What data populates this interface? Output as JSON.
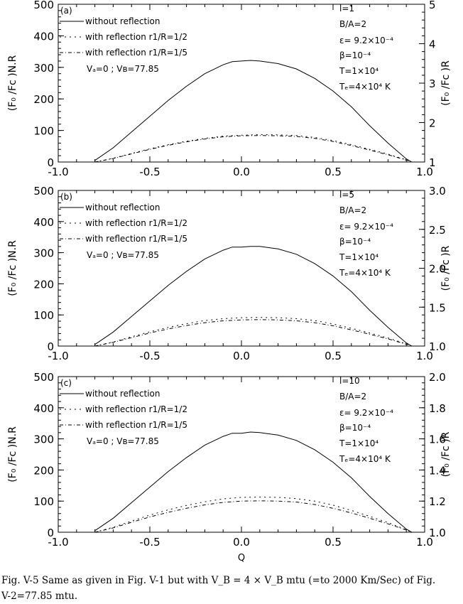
{
  "chart_data": [
    {
      "type": "line",
      "panel_label": "(a)",
      "x_range": [
        -1.0,
        1.0
      ],
      "ylim_left": [
        0,
        500
      ],
      "ylim_right": [
        1,
        5
      ],
      "x_ticks": [
        "-1.0",
        "-0.5",
        "0.0",
        "0.5",
        "1.0"
      ],
      "y_ticks_left": [
        "0",
        "100",
        "200",
        "300",
        "400",
        "500"
      ],
      "y_ticks_right": [
        "1",
        "2",
        "3",
        "4",
        "5"
      ],
      "ylabel_left": "(F₀ /Fᴄ )N.R",
      "ylabel_right": "(F₀ /Fᴄ )R",
      "xlabel": "",
      "legend": [
        "without reflection",
        "with reflection r1/R=1/2",
        "with reflection r1/R=1/5"
      ],
      "velocity_note": "Vₐ=0 ; Vʙ=77.85",
      "params": [
        "l=1",
        "B/A=2",
        "ε= 9.2×10⁻⁴",
        "β=10⁻⁴",
        "T=1×10⁴",
        "Tₑ=4×10⁴ K"
      ],
      "series": [
        {
          "name": "without reflection",
          "axis": "left",
          "x": [
            -0.8,
            -0.7,
            -0.6,
            -0.5,
            -0.4,
            -0.3,
            -0.2,
            -0.1,
            -0.05,
            0.0,
            0.05,
            0.1,
            0.2,
            0.3,
            0.4,
            0.5,
            0.6,
            0.7,
            0.8,
            0.9,
            0.93
          ],
          "y": [
            5,
            45,
            95,
            145,
            195,
            240,
            280,
            308,
            318,
            320,
            322,
            320,
            312,
            295,
            265,
            225,
            175,
            115,
            60,
            10,
            0
          ]
        },
        {
          "name": "with reflection r1/R=1/2",
          "axis": "left",
          "x": [
            -0.8,
            -0.7,
            -0.6,
            -0.5,
            -0.4,
            -0.3,
            -0.2,
            -0.1,
            0.0,
            0.1,
            0.2,
            0.3,
            0.4,
            0.5,
            0.6,
            0.7,
            0.8,
            0.9,
            0.93
          ],
          "y": [
            0,
            12,
            27,
            42,
            55,
            66,
            75,
            82,
            85,
            87,
            86,
            84,
            78,
            68,
            55,
            40,
            25,
            7,
            0
          ]
        },
        {
          "name": "with reflection r1/R=1/5",
          "axis": "left",
          "x": [
            -0.8,
            -0.7,
            -0.6,
            -0.5,
            -0.4,
            -0.3,
            -0.2,
            -0.1,
            0.0,
            0.1,
            0.2,
            0.3,
            0.4,
            0.5,
            0.6,
            0.7,
            0.8,
            0.9,
            0.93
          ],
          "y": [
            0,
            11,
            26,
            40,
            53,
            64,
            73,
            80,
            83,
            84,
            83,
            81,
            75,
            65,
            52,
            38,
            23,
            6,
            0
          ]
        }
      ]
    },
    {
      "type": "line",
      "panel_label": "(b)",
      "x_range": [
        -1.0,
        1.0
      ],
      "ylim_left": [
        0,
        500
      ],
      "ylim_right": [
        1.0,
        3.0
      ],
      "x_ticks": [
        "-1.0",
        "-0.5",
        "0.0",
        "0.5",
        "1.0"
      ],
      "y_ticks_left": [
        "0",
        "100",
        "200",
        "300",
        "400",
        "500"
      ],
      "y_ticks_right": [
        "1.0",
        "1.5",
        "2.0",
        "2.5",
        "3.0"
      ],
      "ylabel_left": "(F₀ /Fᴄ )N.R",
      "ylabel_right": "(F₀ /Fᴄ )R",
      "xlabel": "",
      "legend": [
        "without reflection",
        "with reflection r1/R=1/2",
        "with reflection r1/R=1/5"
      ],
      "velocity_note": "Vₐ=0 ; Vʙ=77.85",
      "params": [
        "l=5",
        "B/A=2",
        "ε= 9.2×10⁻⁴",
        "β=10⁻⁴",
        "T=1×10⁴",
        "Tₑ=4×10⁴ K"
      ],
      "series": [
        {
          "name": "without reflection",
          "axis": "left",
          "x": [
            -0.8,
            -0.7,
            -0.6,
            -0.5,
            -0.4,
            -0.3,
            -0.2,
            -0.1,
            -0.05,
            0.0,
            0.05,
            0.1,
            0.2,
            0.3,
            0.4,
            0.5,
            0.6,
            0.7,
            0.8,
            0.9,
            0.93
          ],
          "y": [
            5,
            45,
            95,
            145,
            195,
            240,
            280,
            308,
            318,
            318,
            320,
            320,
            312,
            295,
            265,
            225,
            175,
            115,
            60,
            10,
            0
          ]
        },
        {
          "name": "with reflection r1/R=1/2",
          "axis": "left",
          "x": [
            -0.8,
            -0.7,
            -0.6,
            -0.5,
            -0.4,
            -0.3,
            -0.2,
            -0.1,
            0.0,
            0.1,
            0.2,
            0.3,
            0.4,
            0.5,
            0.6,
            0.7,
            0.8,
            0.9,
            0.93
          ],
          "y": [
            0,
            13,
            30,
            46,
            60,
            72,
            82,
            88,
            91,
            92,
            91,
            88,
            82,
            71,
            57,
            42,
            26,
            7,
            0
          ]
        },
        {
          "name": "with reflection r1/R=1/5",
          "axis": "left",
          "x": [
            -0.8,
            -0.7,
            -0.6,
            -0.5,
            -0.4,
            -0.3,
            -0.2,
            -0.1,
            0.0,
            0.1,
            0.2,
            0.3,
            0.4,
            0.5,
            0.6,
            0.7,
            0.8,
            0.9,
            0.93
          ],
          "y": [
            0,
            12,
            27,
            42,
            55,
            66,
            75,
            81,
            84,
            85,
            84,
            81,
            75,
            65,
            52,
            38,
            23,
            6,
            0
          ]
        }
      ]
    },
    {
      "type": "line",
      "panel_label": "(c)",
      "x_range": [
        -1.0,
        1.0
      ],
      "ylim_left": [
        0,
        500
      ],
      "ylim_right": [
        1.0,
        2.0
      ],
      "x_ticks": [
        "-1.0",
        "-0.5",
        "0.0",
        "0.5",
        "1.0"
      ],
      "y_ticks_left": [
        "0",
        "100",
        "200",
        "300",
        "400",
        "500"
      ],
      "y_ticks_right": [
        "1.0",
        "1.2",
        "1.4",
        "1.6",
        "1.8",
        "2.0"
      ],
      "ylabel_left": "(F₀ /Fᴄ )N.R",
      "ylabel_right": "(F₀ /Fᴄ )R",
      "xlabel": "Q",
      "legend": [
        "without reflection",
        "with reflection r1/R=1/2",
        "with reflection r1/R=1/5"
      ],
      "velocity_note": "Vₐ=0 ; Vʙ=77.85",
      "params": [
        "l=10",
        "B/A=2",
        "ε= 9.2×10⁻⁴",
        "β=10⁻⁴",
        "T=1×10⁴",
        "Tₑ=4×10⁴ K"
      ],
      "series": [
        {
          "name": "without reflection",
          "axis": "left",
          "x": [
            -0.8,
            -0.7,
            -0.6,
            -0.5,
            -0.4,
            -0.3,
            -0.2,
            -0.1,
            -0.05,
            0.0,
            0.05,
            0.1,
            0.2,
            0.3,
            0.4,
            0.5,
            0.6,
            0.7,
            0.8,
            0.9,
            0.93
          ],
          "y": [
            5,
            45,
            95,
            145,
            195,
            240,
            280,
            308,
            318,
            318,
            322,
            320,
            312,
            295,
            265,
            225,
            175,
            115,
            60,
            10,
            0
          ]
        },
        {
          "name": "with reflection r1/R=1/2",
          "axis": "left",
          "x": [
            -0.8,
            -0.7,
            -0.6,
            -0.5,
            -0.4,
            -0.3,
            -0.2,
            -0.1,
            0.0,
            0.1,
            0.2,
            0.3,
            0.4,
            0.5,
            0.6,
            0.7,
            0.8,
            0.9,
            0.93
          ],
          "y": [
            0,
            16,
            36,
            55,
            72,
            86,
            98,
            107,
            112,
            113,
            112,
            108,
            100,
            87,
            70,
            51,
            31,
            8,
            0
          ]
        },
        {
          "name": "with reflection r1/R=1/5",
          "axis": "left",
          "x": [
            -0.8,
            -0.7,
            -0.6,
            -0.5,
            -0.4,
            -0.3,
            -0.2,
            -0.1,
            0.0,
            0.1,
            0.2,
            0.3,
            0.4,
            0.5,
            0.6,
            0.7,
            0.8,
            0.9,
            0.93
          ],
          "y": [
            0,
            14,
            32,
            49,
            64,
            77,
            88,
            96,
            100,
            101,
            100,
            97,
            89,
            77,
            62,
            45,
            27,
            7,
            0
          ]
        }
      ]
    }
  ],
  "caption": {
    "line1": "Fig.  V-5 Same as given in Fig.  V-1 but with V_B = 4 × V_B mtu (=to 2000 Km/Sec) of Fig.",
    "line2": "V-2=77.85 mtu."
  }
}
